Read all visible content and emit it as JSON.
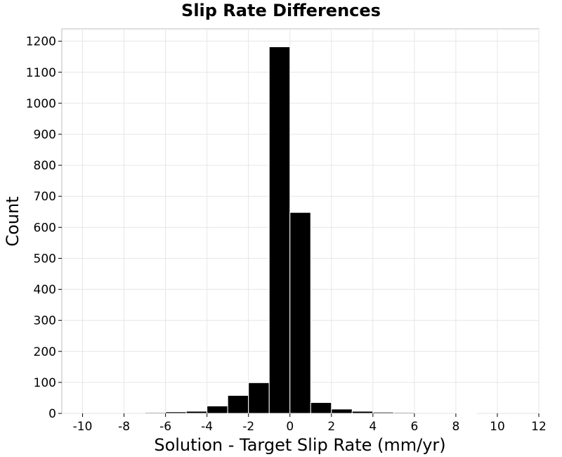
{
  "chart_data": {
    "type": "bar",
    "title": "Slip Rate Differences",
    "xlabel": "Solution - Target Slip Rate (mm/yr)",
    "ylabel": "Count",
    "xlim": [
      -11,
      12
    ],
    "ylim": [
      0,
      1240
    ],
    "xticks": [
      -10,
      -8,
      -6,
      -4,
      -2,
      0,
      2,
      4,
      6,
      8,
      10,
      12
    ],
    "xtick_labels": [
      "-10",
      "-8",
      "-6",
      "-4",
      "-2",
      "0",
      "2",
      "4",
      "6",
      "8",
      "10",
      "12"
    ],
    "yticks": [
      0,
      100,
      200,
      300,
      400,
      500,
      600,
      700,
      800,
      900,
      1000,
      1100,
      1200
    ],
    "ytick_labels": [
      "0",
      "100",
      "200",
      "300",
      "400",
      "500",
      "600",
      "700",
      "800",
      "900",
      "1000",
      "1100",
      "1200"
    ],
    "bin_width": 1,
    "bins": [
      {
        "center": -6.5,
        "value": 3
      },
      {
        "center": -5.5,
        "value": 5
      },
      {
        "center": -4.5,
        "value": 7
      },
      {
        "center": -3.5,
        "value": 24
      },
      {
        "center": -2.5,
        "value": 58
      },
      {
        "center": -1.5,
        "value": 99
      },
      {
        "center": -0.5,
        "value": 1182
      },
      {
        "center": 0.5,
        "value": 648
      },
      {
        "center": 1.5,
        "value": 35
      },
      {
        "center": 2.5,
        "value": 14
      },
      {
        "center": 3.5,
        "value": 7
      },
      {
        "center": 4.5,
        "value": 4
      },
      {
        "center": 5.5,
        "value": 3
      },
      {
        "center": 8.5,
        "value": 2
      }
    ],
    "bar_color": "#000000",
    "grid": true,
    "legend": "none"
  }
}
